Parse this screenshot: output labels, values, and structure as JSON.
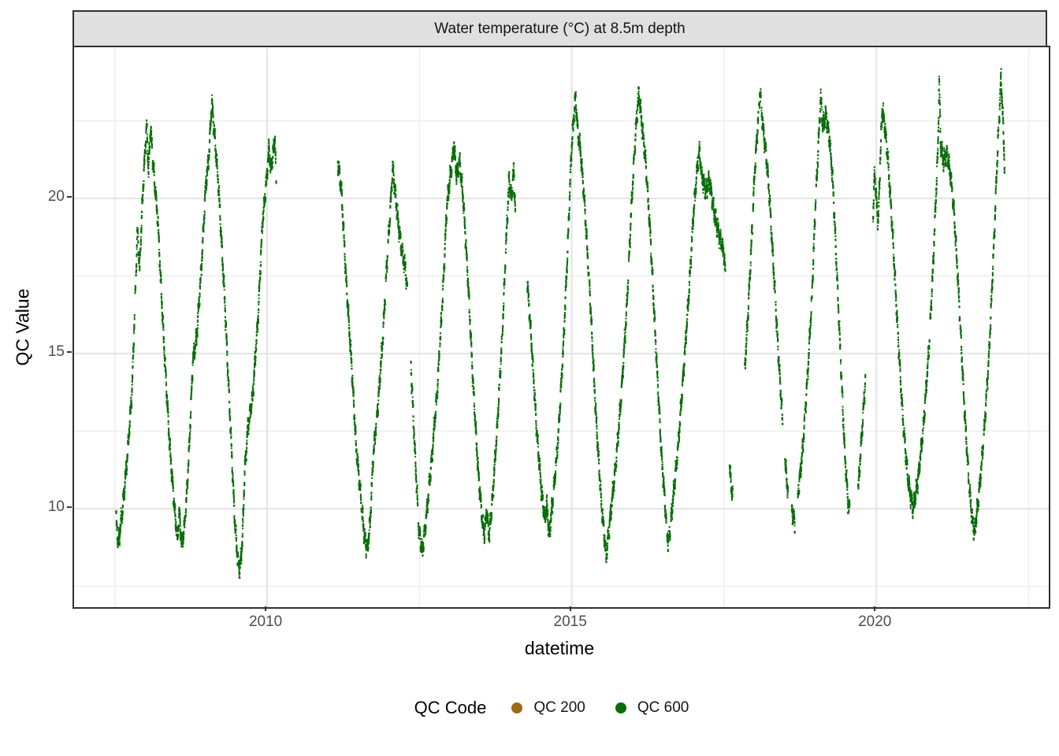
{
  "strip": {
    "title": "Water temperature (°C) at 8.5m depth"
  },
  "colors": {
    "strip_fill": "#e0e0e0",
    "panel_border": "#2f2f2f",
    "grid_major": "#e4e4e4",
    "grid_minor": "#ededed",
    "tick_mark": "#333333",
    "tick_label": "#4d4d4d",
    "qc200": "#9e6b17",
    "qc600": "#0a6e0a"
  },
  "chart_data": {
    "type": "scatter",
    "title": "Water temperature (°C) at 8.5m depth",
    "xlabel": "datetime",
    "ylabel": "QC Value",
    "xlim": [
      2006.83,
      2022.83
    ],
    "ylim": [
      6.83,
      24.87
    ],
    "x_ticks": [
      2010,
      2015,
      2020
    ],
    "x_tick_labels": [
      "2010",
      "2015",
      "2020"
    ],
    "x_minor_ticks": [
      2007.5,
      2012.5,
      2017.5,
      2022.5
    ],
    "y_ticks": [
      10,
      15,
      20
    ],
    "y_tick_labels": [
      "10",
      "15",
      "20"
    ],
    "y_minor_ticks": [
      7.5,
      12.5,
      17.5,
      22.5
    ],
    "grid": "major+minor",
    "legend_position": "bottom",
    "legend_title": "QC Code",
    "point_size": 2,
    "noise": {
      "seed": 1337,
      "slow_amps": [
        0.16,
        0.12,
        0.09
      ],
      "slow_freqs": [
        26,
        61,
        137
      ],
      "jitter": 0.16,
      "samples_per_day": 4,
      "dropout_prob": 0.02,
      "dropout_max_days": 3
    },
    "series": [
      {
        "name": "QC 200",
        "color": "#9e6b17",
        "segments": []
      },
      {
        "name": "QC 600",
        "color": "#0a6e0a",
        "segments": [
          [
            [
              2007.52,
              9.7
            ],
            [
              2007.555,
              8.85
            ],
            [
              2007.62,
              9.9
            ],
            [
              2007.7,
              11.6
            ],
            [
              2007.78,
              13.8
            ],
            [
              2007.87,
              19.0
            ],
            [
              2007.905,
              17.7
            ],
            [
              2007.96,
              20.3
            ],
            [
              2008.02,
              22.4
            ],
            [
              2008.05,
              20.9
            ],
            [
              2008.085,
              22.3
            ],
            [
              2008.13,
              21.0
            ],
            [
              2008.2,
              19.4
            ],
            [
              2008.3,
              15.5
            ],
            [
              2008.4,
              12.0
            ],
            [
              2008.49,
              9.7
            ],
            [
              2008.53,
              9.0
            ],
            [
              2008.555,
              9.9
            ],
            [
              2008.6,
              8.8
            ],
            [
              2008.66,
              9.8
            ],
            [
              2008.72,
              12.0
            ],
            [
              2008.78,
              14.8
            ],
            [
              2008.84,
              15.5
            ],
            [
              2008.92,
              17.8
            ],
            [
              2008.99,
              20.4
            ],
            [
              2009.04,
              21.3
            ],
            [
              2009.09,
              23.1
            ],
            [
              2009.14,
              21.9
            ],
            [
              2009.2,
              20.4
            ],
            [
              2009.3,
              16.8
            ],
            [
              2009.4,
              12.5
            ],
            [
              2009.47,
              9.5
            ],
            [
              2009.52,
              8.3
            ],
            [
              2009.55,
              8.05
            ],
            [
              2009.59,
              8.9
            ],
            [
              2009.63,
              11.2
            ],
            [
              2009.68,
              12.6
            ],
            [
              2009.76,
              13.6
            ],
            [
              2009.85,
              16.2
            ],
            [
              2009.92,
              19.2
            ],
            [
              2009.97,
              20.2
            ],
            [
              2010.03,
              21.6
            ],
            [
              2010.06,
              20.9
            ],
            [
              2010.1,
              21.5
            ],
            [
              2010.125,
              22.0
            ],
            [
              2010.15,
              20.4
            ]
          ],
          [
            [
              2011.16,
              21.2
            ],
            [
              2011.22,
              20.2
            ],
            [
              2011.3,
              17.2
            ],
            [
              2011.38,
              14.8
            ],
            [
              2011.46,
              12.0
            ],
            [
              2011.54,
              10.3
            ],
            [
              2011.6,
              9.0
            ],
            [
              2011.645,
              8.7
            ],
            [
              2011.69,
              9.6
            ],
            [
              2011.74,
              11.7
            ],
            [
              2011.82,
              13.4
            ],
            [
              2011.9,
              15.6
            ],
            [
              2011.96,
              17.8
            ],
            [
              2012.02,
              19.6
            ],
            [
              2012.06,
              21.0
            ],
            [
              2012.1,
              20.2
            ],
            [
              2012.15,
              19.2
            ],
            [
              2012.21,
              18.3
            ],
            [
              2012.27,
              17.7
            ],
            [
              2012.3,
              17.0
            ]
          ],
          [
            [
              2012.36,
              14.6
            ],
            [
              2012.43,
              11.6
            ],
            [
              2012.49,
              9.3
            ],
            [
              2012.545,
              8.6
            ],
            [
              2012.61,
              9.7
            ],
            [
              2012.7,
              11.6
            ],
            [
              2012.79,
              13.8
            ],
            [
              2012.88,
              16.8
            ],
            [
              2012.95,
              19.8
            ],
            [
              2013.01,
              20.8
            ],
            [
              2013.065,
              21.7
            ],
            [
              2013.11,
              20.7
            ],
            [
              2013.16,
              21.2
            ],
            [
              2013.22,
              19.9
            ],
            [
              2013.3,
              17.2
            ],
            [
              2013.38,
              14.0
            ],
            [
              2013.46,
              11.3
            ],
            [
              2013.53,
              9.6
            ],
            [
              2013.565,
              9.2
            ],
            [
              2013.6,
              9.9
            ],
            [
              2013.645,
              9.15
            ],
            [
              2013.7,
              10.4
            ],
            [
              2013.78,
              12.8
            ],
            [
              2013.86,
              15.7
            ],
            [
              2013.92,
              18.5
            ],
            [
              2013.97,
              20.6
            ],
            [
              2014.01,
              20.0
            ],
            [
              2014.045,
              20.9
            ],
            [
              2014.075,
              19.6
            ]
          ],
          [
            [
              2014.27,
              17.3
            ],
            [
              2014.34,
              15.3
            ],
            [
              2014.42,
              12.6
            ],
            [
              2014.5,
              10.6
            ],
            [
              2014.555,
              9.7
            ],
            [
              2014.59,
              10.1
            ],
            [
              2014.63,
              9.15
            ],
            [
              2014.7,
              10.5
            ],
            [
              2014.78,
              12.4
            ],
            [
              2014.86,
              15.2
            ],
            [
              2014.93,
              18.3
            ],
            [
              2014.99,
              21.4
            ],
            [
              2015.03,
              22.6
            ],
            [
              2015.06,
              23.3
            ],
            [
              2015.1,
              22.1
            ],
            [
              2015.145,
              21.5
            ],
            [
              2015.21,
              19.8
            ],
            [
              2015.3,
              16.8
            ],
            [
              2015.39,
              13.2
            ],
            [
              2015.48,
              10.3
            ],
            [
              2015.53,
              9.2
            ],
            [
              2015.565,
              8.45
            ],
            [
              2015.63,
              9.7
            ],
            [
              2015.72,
              11.4
            ],
            [
              2015.81,
              13.6
            ],
            [
              2015.9,
              16.4
            ],
            [
              2015.98,
              19.8
            ],
            [
              2016.05,
              22.2
            ],
            [
              2016.1,
              23.4
            ],
            [
              2016.15,
              22.4
            ],
            [
              2016.21,
              21.2
            ],
            [
              2016.29,
              18.8
            ],
            [
              2016.38,
              15.2
            ],
            [
              2016.47,
              11.8
            ],
            [
              2016.55,
              9.6
            ],
            [
              2016.585,
              8.8
            ],
            [
              2016.65,
              10.1
            ],
            [
              2016.74,
              11.9
            ],
            [
              2016.83,
              14.3
            ],
            [
              2016.92,
              16.9
            ],
            [
              2017.0,
              19.6
            ],
            [
              2017.06,
              21.0
            ],
            [
              2017.095,
              21.5
            ],
            [
              2017.14,
              20.7
            ],
            [
              2017.2,
              20.2
            ],
            [
              2017.26,
              20.6
            ],
            [
              2017.33,
              19.6
            ],
            [
              2017.42,
              18.8
            ],
            [
              2017.5,
              18.2
            ],
            [
              2017.52,
              17.6
            ]
          ],
          [
            [
              2017.59,
              11.3
            ],
            [
              2017.615,
              10.8
            ],
            [
              2017.64,
              10.3
            ]
          ],
          [
            [
              2017.84,
              14.5
            ],
            [
              2017.89,
              16.2
            ],
            [
              2017.95,
              18.6
            ],
            [
              2018.0,
              20.8
            ],
            [
              2018.05,
              22.3
            ],
            [
              2018.09,
              23.5
            ],
            [
              2018.13,
              22.4
            ],
            [
              2018.18,
              21.6
            ],
            [
              2018.24,
              20.2
            ],
            [
              2018.31,
              17.8
            ],
            [
              2018.39,
              15.0
            ],
            [
              2018.46,
              12.8
            ]
          ],
          [
            [
              2018.5,
              11.5
            ],
            [
              2018.55,
              10.5
            ]
          ],
          [
            [
              2018.61,
              10.0
            ],
            [
              2018.66,
              9.55
            ]
          ],
          [
            [
              2018.71,
              10.4
            ],
            [
              2018.79,
              11.9
            ],
            [
              2018.87,
              14.3
            ],
            [
              2018.94,
              16.8
            ],
            [
              2019.0,
              19.8
            ],
            [
              2019.05,
              21.8
            ],
            [
              2019.085,
              23.3
            ],
            [
              2019.12,
              22.3
            ],
            [
              2019.17,
              22.7
            ],
            [
              2019.23,
              21.9
            ],
            [
              2019.28,
              20.7
            ],
            [
              2019.32,
              19.0
            ],
            [
              2019.4,
              15.4
            ],
            [
              2019.48,
              11.8
            ],
            [
              2019.535,
              10.2
            ],
            [
              2019.56,
              9.9
            ]
          ],
          [
            [
              2019.7,
              10.6
            ],
            [
              2019.76,
              12.4
            ],
            [
              2019.82,
              14.2
            ]
          ],
          [
            [
              2019.945,
              19.3
            ],
            [
              2019.97,
              20.9
            ],
            [
              2020.0,
              19.9
            ],
            [
              2020.03,
              19.2
            ],
            [
              2020.06,
              21.1
            ],
            [
              2020.095,
              22.9
            ],
            [
              2020.14,
              22.3
            ],
            [
              2020.19,
              21.2
            ],
            [
              2020.26,
              19.1
            ],
            [
              2020.34,
              16.1
            ],
            [
              2020.43,
              13.0
            ],
            [
              2020.52,
              10.9
            ],
            [
              2020.6,
              10.0
            ],
            [
              2020.68,
              10.9
            ],
            [
              2020.77,
              12.6
            ],
            [
              2020.86,
              15.1
            ],
            [
              2020.93,
              17.8
            ],
            [
              2020.98,
              20.2
            ],
            [
              2021.01,
              21.6
            ],
            [
              2021.03,
              23.8
            ],
            [
              2021.055,
              21.7
            ],
            [
              2021.1,
              21.2
            ],
            [
              2021.16,
              21.4
            ],
            [
              2021.22,
              20.7
            ],
            [
              2021.28,
              19.4
            ],
            [
              2021.36,
              16.6
            ],
            [
              2021.44,
              13.4
            ],
            [
              2021.52,
              10.8
            ],
            [
              2021.575,
              9.6
            ],
            [
              2021.61,
              9.25
            ],
            [
              2021.67,
              10.2
            ],
            [
              2021.76,
              12.2
            ],
            [
              2021.85,
              15.0
            ],
            [
              2021.93,
              18.6
            ],
            [
              2021.99,
              21.6
            ],
            [
              2022.02,
              22.8
            ],
            [
              2022.045,
              23.9
            ],
            [
              2022.07,
              22.9
            ],
            [
              2022.105,
              21.0
            ]
          ]
        ]
      }
    ]
  }
}
